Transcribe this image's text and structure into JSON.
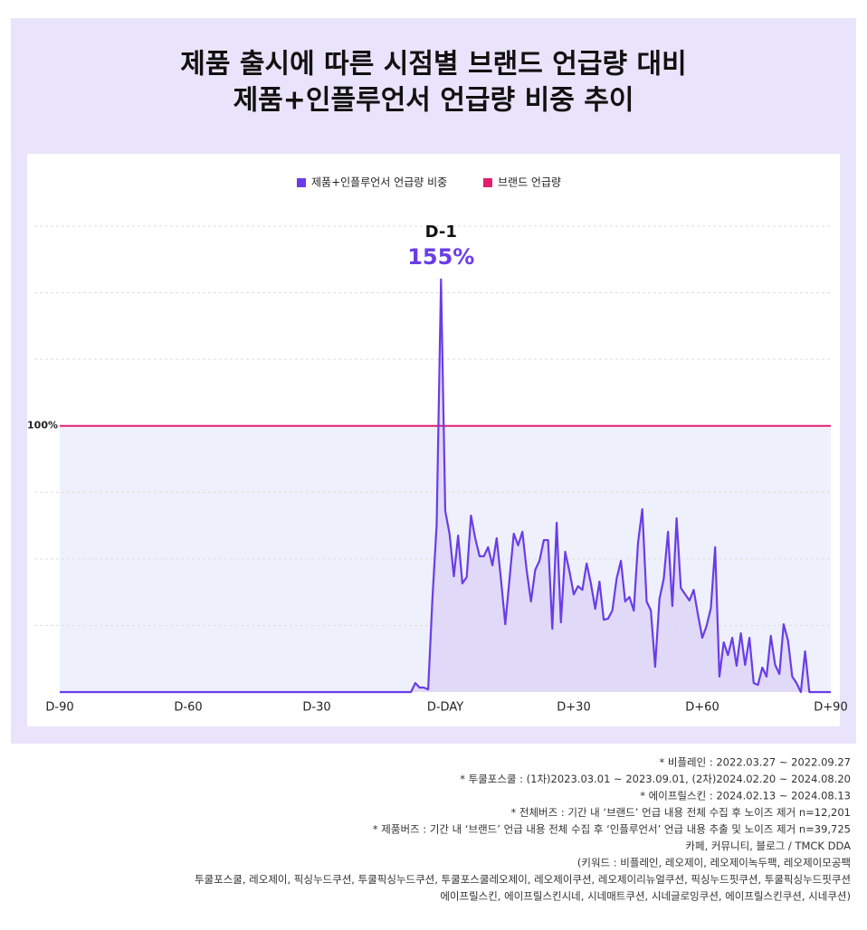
{
  "chart_data": {
    "type": "line",
    "title": [
      "제품 출시에 따른 시점별 브랜드 언급량 대비",
      "제품+인플루언서 언급량 비중 추이"
    ],
    "x": [
      -90,
      -89,
      -88,
      -87,
      -86,
      -85,
      -84,
      -83,
      -82,
      -81,
      -80,
      -79,
      -78,
      -77,
      -76,
      -75,
      -74,
      -73,
      -72,
      -71,
      -70,
      -69,
      -68,
      -67,
      -66,
      -65,
      -64,
      -63,
      -62,
      -61,
      -60,
      -59,
      -58,
      -57,
      -56,
      -55,
      -54,
      -53,
      -52,
      -51,
      -50,
      -49,
      -48,
      -47,
      -46,
      -45,
      -44,
      -43,
      -42,
      -41,
      -40,
      -39,
      -38,
      -37,
      -36,
      -35,
      -34,
      -33,
      -32,
      -31,
      -30,
      -29,
      -28,
      -27,
      -26,
      -25,
      -24,
      -23,
      -22,
      -21,
      -20,
      -19,
      -18,
      -17,
      -16,
      -15,
      -14,
      -13,
      -12,
      -11,
      -10,
      -9,
      -8,
      -7,
      -6,
      -5,
      -4,
      -3,
      -2,
      -1,
      0,
      1,
      2,
      3,
      4,
      5,
      6,
      7,
      8,
      9,
      10,
      11,
      12,
      13,
      14,
      15,
      16,
      17,
      18,
      19,
      20,
      21,
      22,
      23,
      24,
      25,
      26,
      27,
      28,
      29,
      30,
      31,
      32,
      33,
      34,
      35,
      36,
      37,
      38,
      39,
      40,
      41,
      42,
      43,
      44,
      45,
      46,
      47,
      48,
      49,
      50,
      51,
      52,
      53,
      54,
      55,
      56,
      57,
      58,
      59,
      60,
      61,
      62,
      63,
      64,
      65,
      66,
      67,
      68,
      69,
      70,
      71,
      72,
      73,
      74,
      75,
      76,
      77,
      78,
      79,
      80,
      81,
      82,
      83,
      84,
      85,
      86,
      87,
      88,
      89,
      90
    ],
    "series": [
      {
        "name": "제품+인플루언서 언급량 비중",
        "color": "#6a3de8",
        "fill": "#dcd3f7",
        "values": [
          0,
          0,
          0,
          0,
          0,
          0,
          0,
          0,
          0,
          0,
          0,
          0,
          0,
          0,
          0,
          0,
          0,
          0,
          0,
          0,
          0,
          0,
          0,
          0,
          0,
          0,
          0,
          0,
          0,
          0,
          0,
          0,
          0,
          0,
          0,
          0,
          0,
          0,
          0,
          0,
          0,
          0,
          0,
          0,
          0,
          0,
          0,
          0,
          0,
          0,
          0,
          0,
          0,
          0,
          0,
          0,
          0,
          0,
          0,
          0,
          0,
          0,
          0,
          0,
          0,
          0,
          0,
          0,
          0,
          0,
          0,
          0,
          0,
          0,
          0,
          0,
          0,
          0,
          0,
          0,
          0,
          0,
          0,
          3.4,
          1.7,
          1.7,
          1,
          35,
          63,
          155,
          68,
          59.5,
          43.5,
          58.8,
          40.8,
          43.2,
          66.3,
          57.8,
          51,
          51,
          54.4,
          47.6,
          57.8,
          42.5,
          25.5,
          42.5,
          59.5,
          55.1,
          60.2,
          45.9,
          34,
          45.9,
          49.3,
          57.1,
          57.1,
          23.8,
          63.6,
          26.2,
          52.7,
          45.2,
          36.7,
          39.8,
          38.4,
          48.3,
          40.8,
          31.3,
          41.5,
          27.2,
          27.6,
          30.6,
          42.5,
          49.3,
          34,
          35.7,
          30.6,
          56.1,
          68.7,
          34,
          30.6,
          9.5,
          35,
          42.5,
          60.2,
          32.3,
          65.3,
          39.1,
          36.7,
          34.4,
          38.4,
          28.9,
          20.4,
          24.8,
          31.6,
          54.4,
          5.8,
          18.7,
          13.9,
          20.4,
          9.9,
          22.1,
          10.2,
          20.4,
          3.4,
          2.7,
          9.2,
          5.8,
          21.1,
          10.2,
          6.8,
          25.5,
          19.4,
          5.8,
          3.4,
          0,
          15.3,
          0,
          0,
          0,
          0,
          0,
          0
        ]
      },
      {
        "name": "브랜드 언급량",
        "color": "#e0206f",
        "fill": "#eef1fb",
        "x": [
          -90,
          90
        ],
        "values": [
          100,
          100
        ]
      }
    ],
    "annotation": {
      "title": "D-1",
      "label": "155%",
      "index": 89
    },
    "xlim": [
      -90,
      90
    ],
    "xticks": [
      {
        "value": -90,
        "label": "D-90"
      },
      {
        "value": -60,
        "label": "D-60"
      },
      {
        "value": -30,
        "label": "D-30"
      },
      {
        "value": 0,
        "label": "D-DAY"
      },
      {
        "value": 30,
        "label": "D+30"
      },
      {
        "value": 60,
        "label": "D+60"
      },
      {
        "value": 90,
        "label": "D+90"
      }
    ],
    "ylim": [
      0,
      175
    ],
    "yticks": [
      {
        "value": 100,
        "label": "100%"
      }
    ],
    "grid_lines": [
      25,
      50,
      75,
      125,
      150,
      175
    ],
    "notes": [
      "* 비플레인 : 2022.03.27 ~ 2022.09.27",
      "* 투쿨포스쿨 : (1차)2023.03.01 ~ 2023.09.01, (2차)2024.02.20 ~ 2024.08.20",
      "* 에이프릴스킨 : 2024.02.13 ~ 2024.08.13",
      "* 전체버즈 : 기간 내 ‘브랜드’ 언급 내용 전체 수집 후 노이즈 제거 n=12,201",
      "* 제품버즈 : 기간 내 ‘브랜드’ 언급 내용 전체 수집 후 ‘인플루언서’ 언급 내용 추출 및 노이즈 제거 n=39,725",
      "카페, 커뮤니티, 블로그 / TMCK DDA",
      "(키워드 : 비플레인, 레오제이, 레오제이녹두팩, 레오제이모공팩",
      "투쿨포스쿨, 레오제이, 픽싱누드쿠션, 투쿨픽싱누드쿠션, 투쿨포스쿨레오제이, 레오제이쿠션, 레오제이리뉴얼쿠션, 픽싱누드핏쿠션, 투쿨픽싱누드핏쿠션",
      "에이프릴스킨, 에이프릴스킨시네, 시네매트쿠션, 시네글로잉쿠션, 에이프릴스킨쿠션, 시네쿠션)"
    ]
  }
}
